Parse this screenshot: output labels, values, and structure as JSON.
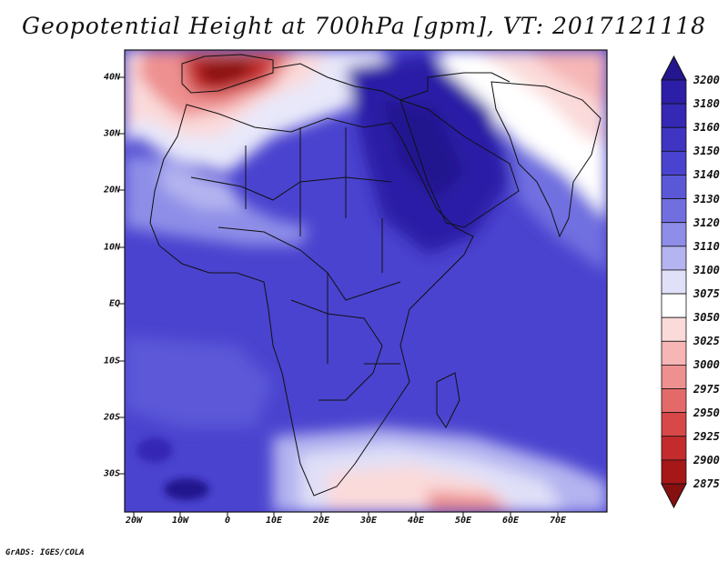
{
  "title": "Geopotential Height at 700hPa [gpm], VT: 2017121118",
  "credit": "GrADS: IGES/COLA",
  "latitude_labels": [
    "40N",
    "30N",
    "20N",
    "10N",
    "EQ",
    "10S",
    "20S",
    "30S"
  ],
  "longitude_labels": [
    "20W",
    "10W",
    "0",
    "10E",
    "20E",
    "30E",
    "40E",
    "50E",
    "60E",
    "70E"
  ],
  "colorbar": {
    "levels": [
      "3200",
      "3180",
      "3160",
      "3150",
      "3140",
      "3130",
      "3120",
      "3110",
      "3100",
      "3075",
      "3050",
      "3025",
      "3000",
      "2975",
      "2950",
      "2925",
      "2900",
      "2875"
    ],
    "colors": [
      "#24168f",
      "#2c1ea6",
      "#3528b5",
      "#3f35c2",
      "#4a43cf",
      "#5b58d8",
      "#716fe0",
      "#8e8ee8",
      "#b4b4f0",
      "#e0e0f8",
      "#ffffff",
      "#fbdada",
      "#f6b6b6",
      "#ee9090",
      "#e46a6a",
      "#d84848",
      "#c42c2c",
      "#a61717",
      "#861010"
    ]
  },
  "map": {
    "projection": "lat-lon",
    "lon_range": [
      -22,
      80
    ],
    "lat_range": [
      -37,
      45
    ],
    "features": {
      "high_band_north_africa": "3160-3180",
      "low_over_iberia": "2900-2950",
      "high_southern_atlantic": "3180",
      "low_south_of_africa": "3050-3075",
      "low_northeast": "3050-3100"
    }
  }
}
